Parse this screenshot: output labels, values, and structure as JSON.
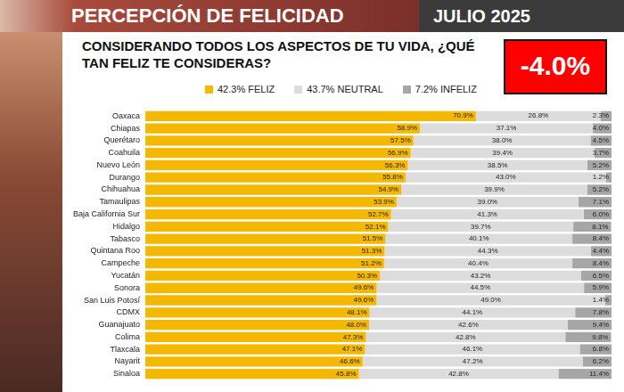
{
  "header": {
    "title": "PERCEPCIÓN DE FELICIDAD",
    "date": "JULIO 2025"
  },
  "chart_data": {
    "type": "bar",
    "orientation": "horizontal",
    "stacked": true,
    "title": "CONSIDERANDO TODOS LOS ASPECTOS DE TU VIDA, ¿QUÉ TAN FELIZ TE CONSIDERAS?",
    "annotations": [
      {
        "text": "-4.0%"
      }
    ],
    "categories": [
      "Oaxaca",
      "Chiapas",
      "Querétaro",
      "Coahuila",
      "Nuevo León",
      "Durango",
      "Chihuahua",
      "Tamaulipas",
      "Baja California Sur",
      "Hidalgo",
      "Tabasco",
      "Quintana Roo",
      "Campeche",
      "Yucatán",
      "Sonora",
      "San Luis Potosí",
      "CDMX",
      "Guanajuato",
      "Colima",
      "Tlaxcala",
      "Nayarit",
      "Sinaloa"
    ],
    "series": [
      {
        "name": "42.3% FELIZ",
        "color": "#f5b800",
        "values": [
          70.9,
          58.9,
          57.5,
          56.9,
          56.3,
          55.8,
          54.9,
          53.9,
          52.7,
          52.1,
          51.5,
          51.3,
          51.2,
          50.3,
          49.6,
          49.6,
          48.1,
          48.0,
          47.3,
          47.1,
          46.6,
          45.8
        ],
        "value_labels": [
          "70.9%",
          "58.9%",
          "57.5%",
          "56.9%",
          "56.3%",
          "55.8%",
          "54.9%",
          "53.9%",
          "52.7%",
          "52.1%",
          "51.5%",
          "51.3%",
          "51.2%",
          "50.3%",
          "49.6%",
          "49.6%",
          "48.1%",
          "48.0%",
          "47.3%",
          "47.1%",
          "46.6%",
          "45.8%"
        ]
      },
      {
        "name": "43.7% NEUTRAL",
        "color": "#dcdcdc",
        "values": [
          26.8,
          37.1,
          38.0,
          39.4,
          38.5,
          43.0,
          39.9,
          39.0,
          41.3,
          39.7,
          40.1,
          44.3,
          40.4,
          43.2,
          44.5,
          49.0,
          44.1,
          42.6,
          42.8,
          46.1,
          47.2,
          42.8
        ],
        "value_labels": [
          "26.8%",
          "37.1%",
          "38.0%",
          "39.4%",
          "38.5%",
          "43.0%",
          "39.9%",
          "39.0%",
          "41.3%",
          "39.7%",
          "40.1%",
          "44.3%",
          "40.4%",
          "43.2%",
          "44.5%",
          "49.0%",
          "44.1%",
          "42.6%",
          "42.8%",
          "46.1%",
          "47.2%",
          "42.8%"
        ]
      },
      {
        "name": "7.2% INFELIZ",
        "color": "#a6a6a6",
        "values": [
          2.3,
          4.0,
          4.5,
          3.7,
          5.2,
          1.2,
          5.2,
          7.1,
          6.0,
          8.1,
          8.4,
          4.4,
          8.4,
          6.5,
          5.9,
          1.4,
          7.8,
          9.4,
          9.8,
          6.8,
          6.2,
          11.4
        ],
        "value_labels": [
          "2.3%",
          "4.0%",
          "4.5%",
          "3.7%",
          "5.2%",
          "1.2%",
          "5.2%",
          "7.1%",
          "6.0%",
          "8.1%",
          "8.4%",
          "4.4%",
          "8.4%",
          "6.5%",
          "5.9%",
          "1.4%",
          "7.8%",
          "9.4%",
          "9.8%",
          "6.8%",
          "6.2%",
          "11.4%"
        ]
      }
    ],
    "xlim": [
      0,
      100
    ],
    "grid": false,
    "tick_labels": "y",
    "legend": "top",
    "data_labels": true
  }
}
